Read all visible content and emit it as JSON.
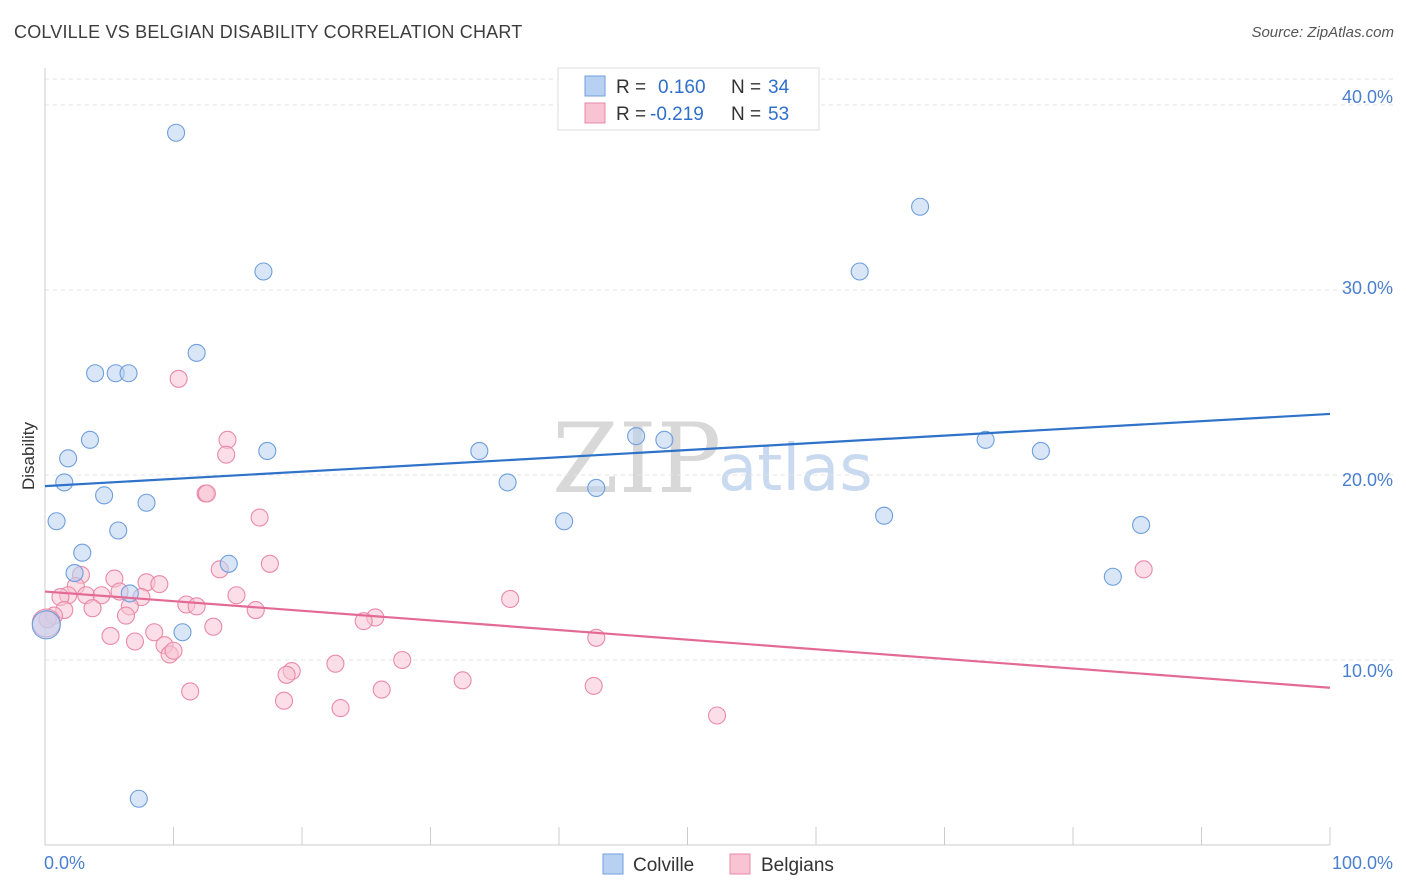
{
  "title": "COLVILLE VS BELGIAN DISABILITY CORRELATION CHART",
  "source": "Source: ZipAtlas.com",
  "watermark": {
    "zip": "ZIP",
    "atlas": "atlas"
  },
  "colors": {
    "colville_fill": "#b8d1f3",
    "colville_stroke": "#6f9fdc",
    "colville_line": "#2e72c9",
    "belgians_fill": "#f8c3d3",
    "belgians_stroke": "#e98aa8",
    "belgians_line": "#e46a96",
    "axis_text": "#4a7fcf",
    "grid": "#e3e3e3"
  },
  "legend_top": [
    {
      "r_label": "R =",
      "r_value": "0.160",
      "n_label": "N =",
      "n_value": "34"
    },
    {
      "r_label": "R =",
      "r_value": "-0.219",
      "n_label": "N =",
      "n_value": "53"
    }
  ],
  "chart_data": {
    "type": "scatter",
    "title": "COLVILLE VS BELGIAN DISABILITY CORRELATION CHART",
    "xlabel": "",
    "ylabel": "Disability",
    "xlim": [
      0,
      100
    ],
    "ylim": [
      0,
      42
    ],
    "x_tick_labels": [
      "0.0%",
      "100.0%"
    ],
    "y_ticks": [
      10,
      20,
      30,
      40
    ],
    "y_tick_labels": [
      "10.0%",
      "20.0%",
      "30.0%",
      "40.0%"
    ],
    "grid": true,
    "legend_position": "bottom",
    "series": [
      {
        "name": "Colville",
        "r": 0.16,
        "n": 34,
        "trend": [
          [
            0,
            19.4
          ],
          [
            100,
            23.3
          ]
        ],
        "points": [
          [
            10.2,
            38.5
          ],
          [
            68.1,
            34.5
          ],
          [
            17.0,
            31.0
          ],
          [
            63.4,
            31.0
          ],
          [
            11.8,
            26.6
          ],
          [
            3.9,
            25.5
          ],
          [
            5.5,
            25.5
          ],
          [
            6.5,
            25.5
          ],
          [
            46.0,
            22.1
          ],
          [
            48.2,
            21.9
          ],
          [
            73.2,
            21.9
          ],
          [
            3.5,
            21.9
          ],
          [
            17.3,
            21.3
          ],
          [
            33.8,
            21.3
          ],
          [
            77.5,
            21.3
          ],
          [
            1.8,
            20.9
          ],
          [
            1.5,
            19.6
          ],
          [
            36.0,
            19.6
          ],
          [
            42.9,
            19.3
          ],
          [
            4.6,
            18.9
          ],
          [
            7.9,
            18.5
          ],
          [
            65.3,
            17.8
          ],
          [
            0.9,
            17.5
          ],
          [
            40.4,
            17.5
          ],
          [
            85.3,
            17.3
          ],
          [
            5.7,
            17.0
          ],
          [
            2.9,
            15.8
          ],
          [
            2.3,
            14.7
          ],
          [
            14.3,
            15.2
          ],
          [
            83.1,
            14.5
          ],
          [
            6.6,
            13.6
          ],
          [
            10.7,
            11.5
          ],
          [
            0.1,
            11.9
          ],
          [
            7.3,
            2.5
          ]
        ]
      },
      {
        "name": "Belgians",
        "r": -0.219,
        "n": 53,
        "trend": [
          [
            0,
            13.7
          ],
          [
            100,
            8.5
          ]
        ],
        "points": [
          [
            10.4,
            25.2
          ],
          [
            14.2,
            21.9
          ],
          [
            14.1,
            21.1
          ],
          [
            12.5,
            19.0
          ],
          [
            12.6,
            19.0
          ],
          [
            16.7,
            17.7
          ],
          [
            17.5,
            15.2
          ],
          [
            13.6,
            14.9
          ],
          [
            2.8,
            14.6
          ],
          [
            5.4,
            14.4
          ],
          [
            7.9,
            14.2
          ],
          [
            2.4,
            14.0
          ],
          [
            8.9,
            14.1
          ],
          [
            1.8,
            13.5
          ],
          [
            1.2,
            13.4
          ],
          [
            3.2,
            13.5
          ],
          [
            4.4,
            13.5
          ],
          [
            5.8,
            13.7
          ],
          [
            7.5,
            13.4
          ],
          [
            14.9,
            13.5
          ],
          [
            36.2,
            13.3
          ],
          [
            6.6,
            12.9
          ],
          [
            11.0,
            13.0
          ],
          [
            11.8,
            12.9
          ],
          [
            3.7,
            12.8
          ],
          [
            1.5,
            12.7
          ],
          [
            16.4,
            12.7
          ],
          [
            6.3,
            12.4
          ],
          [
            0.7,
            12.4
          ],
          [
            0.2,
            12.2
          ],
          [
            25.7,
            12.3
          ],
          [
            24.8,
            12.1
          ],
          [
            13.1,
            11.8
          ],
          [
            8.5,
            11.5
          ],
          [
            5.1,
            11.3
          ],
          [
            7.0,
            11.0
          ],
          [
            9.3,
            10.8
          ],
          [
            42.9,
            11.2
          ],
          [
            9.7,
            10.3
          ],
          [
            10.0,
            10.5
          ],
          [
            27.8,
            10.0
          ],
          [
            22.6,
            9.8
          ],
          [
            19.2,
            9.4
          ],
          [
            18.8,
            9.2
          ],
          [
            32.5,
            8.9
          ],
          [
            42.7,
            8.6
          ],
          [
            26.2,
            8.4
          ],
          [
            11.3,
            8.3
          ],
          [
            18.6,
            7.8
          ],
          [
            23.0,
            7.4
          ],
          [
            52.3,
            7.0
          ],
          [
            85.5,
            14.9
          ],
          [
            0.1,
            12.0
          ]
        ]
      }
    ]
  }
}
